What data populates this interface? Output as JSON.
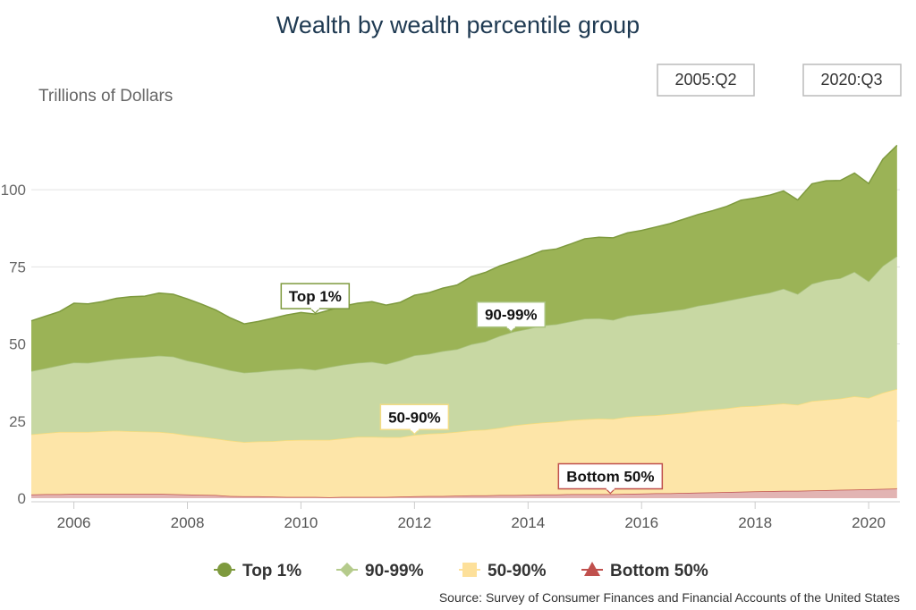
{
  "chart_data": {
    "type": "area",
    "stacked": true,
    "title": "Wealth by wealth percentile group",
    "ylabel": "Trillions of Dollars",
    "xlabel": "",
    "ylim": [
      0,
      118
    ],
    "xlim": [
      2005.25,
      2020.55
    ],
    "yticks": [
      0,
      25,
      50,
      75,
      100
    ],
    "ytick_labels": [
      "0",
      "25",
      "50",
      "75",
      "100"
    ],
    "xticks": [
      2006,
      2008,
      2010,
      2012,
      2014,
      2016,
      2018,
      2020
    ],
    "xtick_labels": [
      "2006",
      "2008",
      "2010",
      "2012",
      "2014",
      "2016",
      "2018",
      "2020"
    ],
    "grid": true,
    "range_start": "2005:Q2",
    "range_end": "2020:Q3",
    "source": "Source: Survey of Consumer Finances and Financial Accounts of the United States",
    "x": [
      2005.25,
      2005.5,
      2005.75,
      2006.0,
      2006.25,
      2006.5,
      2006.75,
      2007.0,
      2007.25,
      2007.5,
      2007.75,
      2008.0,
      2008.25,
      2008.5,
      2008.75,
      2009.0,
      2009.25,
      2009.5,
      2009.75,
      2010.0,
      2010.25,
      2010.5,
      2010.75,
      2011.0,
      2011.25,
      2011.5,
      2011.75,
      2012.0,
      2012.25,
      2012.5,
      2012.75,
      2013.0,
      2013.25,
      2013.5,
      2013.75,
      2014.0,
      2014.25,
      2014.5,
      2014.75,
      2015.0,
      2015.25,
      2015.5,
      2015.75,
      2016.0,
      2016.25,
      2016.5,
      2016.75,
      2017.0,
      2017.25,
      2017.5,
      2017.75,
      2018.0,
      2018.25,
      2018.5,
      2018.75,
      2019.0,
      2019.25,
      2019.5,
      2019.75,
      2020.0,
      2020.25,
      2020.5
    ],
    "series": [
      {
        "name": "Bottom 50%",
        "color": "#c0504d",
        "fill": "#e2b4b3",
        "values": [
          1.2,
          1.3,
          1.3,
          1.4,
          1.4,
          1.4,
          1.4,
          1.4,
          1.4,
          1.4,
          1.3,
          1.2,
          1.1,
          1.0,
          0.7,
          0.6,
          0.6,
          0.5,
          0.4,
          0.4,
          0.4,
          0.3,
          0.4,
          0.4,
          0.4,
          0.4,
          0.5,
          0.6,
          0.7,
          0.7,
          0.8,
          0.9,
          0.9,
          1.0,
          1.0,
          1.1,
          1.2,
          1.2,
          1.3,
          1.3,
          1.3,
          1.3,
          1.4,
          1.5,
          1.6,
          1.6,
          1.7,
          1.8,
          1.9,
          2.0,
          2.1,
          2.2,
          2.3,
          2.4,
          2.4,
          2.5,
          2.6,
          2.7,
          2.8,
          2.9,
          3.0,
          3.1
        ]
      },
      {
        "name": "50-90%",
        "color": "#f7dc7b",
        "fill": "#fde5a8",
        "values": [
          19.5,
          19.8,
          20.2,
          20.1,
          20.1,
          20.3,
          20.5,
          20.3,
          20.2,
          20.1,
          19.8,
          19.2,
          18.8,
          18.3,
          18.0,
          17.6,
          17.8,
          18.0,
          18.4,
          18.5,
          18.5,
          18.6,
          19.0,
          19.5,
          19.5,
          19.4,
          19.3,
          19.9,
          20.2,
          20.4,
          20.7,
          21.1,
          21.3,
          21.8,
          22.6,
          23.0,
          23.3,
          23.6,
          24.0,
          24.3,
          24.5,
          24.4,
          25.0,
          25.2,
          25.3,
          25.7,
          26.0,
          26.5,
          26.8,
          27.1,
          27.6,
          27.7,
          28.0,
          28.3,
          27.9,
          29.0,
          29.3,
          29.6,
          30.2,
          29.6,
          31.2,
          32.3
        ]
      },
      {
        "name": "90-99%",
        "color": "#a9c27e",
        "fill": "#c8d8a3",
        "values": [
          20.5,
          21.0,
          21.6,
          22.5,
          22.4,
          22.8,
          23.2,
          23.8,
          24.2,
          24.7,
          24.8,
          24.2,
          23.8,
          23.3,
          22.8,
          22.5,
          22.6,
          23.0,
          23.0,
          23.2,
          22.7,
          23.6,
          23.9,
          24.0,
          24.3,
          23.7,
          24.9,
          25.8,
          25.9,
          26.6,
          26.8,
          27.9,
          28.6,
          29.8,
          30.4,
          30.8,
          31.5,
          31.6,
          32.0,
          32.6,
          32.5,
          32.1,
          32.7,
          33.0,
          33.2,
          33.4,
          33.6,
          34.1,
          34.4,
          34.9,
          35.2,
          35.9,
          36.3,
          37.2,
          35.9,
          38.0,
          38.8,
          39.0,
          40.4,
          37.8,
          41.1,
          43.1
        ]
      },
      {
        "name": "Top 1%",
        "color": "#7e9a3e",
        "fill": "#9bb356",
        "values": [
          16.3,
          16.9,
          17.4,
          19.2,
          19.1,
          19.2,
          19.7,
          19.8,
          19.7,
          20.3,
          20.2,
          20.0,
          19.2,
          18.4,
          17.0,
          15.8,
          16.3,
          16.8,
          17.6,
          18.1,
          18.1,
          18.5,
          19.0,
          19.3,
          19.5,
          19.1,
          18.8,
          19.5,
          19.8,
          20.4,
          20.8,
          21.9,
          22.4,
          22.7,
          22.8,
          23.5,
          24.2,
          24.4,
          25.1,
          25.9,
          26.3,
          26.6,
          26.9,
          27.1,
          27.8,
          28.3,
          29.2,
          29.6,
          30.1,
          30.6,
          31.7,
          31.5,
          31.6,
          31.7,
          30.5,
          32.4,
          32.2,
          31.7,
          32.0,
          31.7,
          34.6,
          35.9
        ]
      }
    ],
    "annotations": [
      {
        "label": "Top 1%",
        "series": "Top 1%",
        "x": 2010.25,
        "border": "#7e9a3e"
      },
      {
        "label": "90-99%",
        "series": "90-99%",
        "x": 2013.7,
        "border": "#a9c27e"
      },
      {
        "label": "50-90%",
        "series": "50-90%",
        "x": 2012.0,
        "border": "#f2dc86"
      },
      {
        "label": "Bottom 50%",
        "series": "Bottom 50%",
        "x": 2015.45,
        "border": "#c0504d"
      }
    ],
    "legend": [
      {
        "label": "Top 1%",
        "marker": "circle",
        "color": "#7e9a3e"
      },
      {
        "label": "90-99%",
        "marker": "diamond",
        "color": "#b5cb8c"
      },
      {
        "label": "50-90%",
        "marker": "square",
        "color": "#fde09a"
      },
      {
        "label": "Bottom 50%",
        "marker": "triangle",
        "color": "#c0504d"
      }
    ]
  }
}
